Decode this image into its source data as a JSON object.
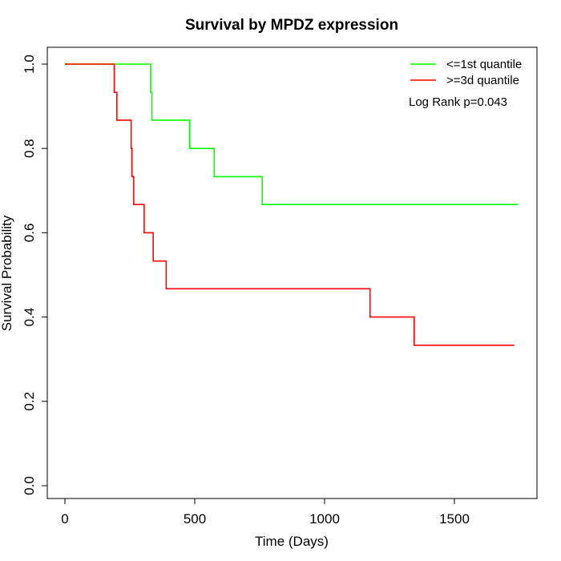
{
  "chart_data": {
    "type": "line",
    "title": "Survival by MPDZ expression",
    "xlabel": "Time (Days)",
    "ylabel": "Survival Probability",
    "xlim": [
      0,
      1800
    ],
    "ylim": [
      0,
      1.0
    ],
    "xticks": [
      0,
      500,
      1000,
      1500
    ],
    "xtick_labels": [
      "0",
      "500",
      "1000",
      "1500"
    ],
    "yticks": [
      0,
      0.2,
      0.4,
      0.6,
      0.8,
      1.0
    ],
    "ytick_labels": [
      "0.0",
      "0.2",
      "0.4",
      "0.6",
      "0.8",
      "1.0"
    ],
    "grid": false,
    "legend_position": "top-right",
    "annotation": "Log Rank p=0.043",
    "series": [
      {
        "name": "<=1st quantile",
        "color": "#00ff00",
        "step": true,
        "x": [
          0,
          330,
          335,
          480,
          575,
          760,
          1745
        ],
        "y": [
          1.0,
          0.933,
          0.867,
          0.8,
          0.733,
          0.667,
          0.667
        ]
      },
      {
        "name": ">=3d quantile",
        "color": "#ff0000",
        "step": true,
        "x": [
          0,
          190,
          200,
          255,
          258,
          265,
          305,
          340,
          390,
          1175,
          1345,
          1730
        ],
        "y": [
          1.0,
          0.933,
          0.867,
          0.8,
          0.733,
          0.667,
          0.6,
          0.533,
          0.467,
          0.4,
          0.333,
          0.333
        ]
      }
    ]
  }
}
